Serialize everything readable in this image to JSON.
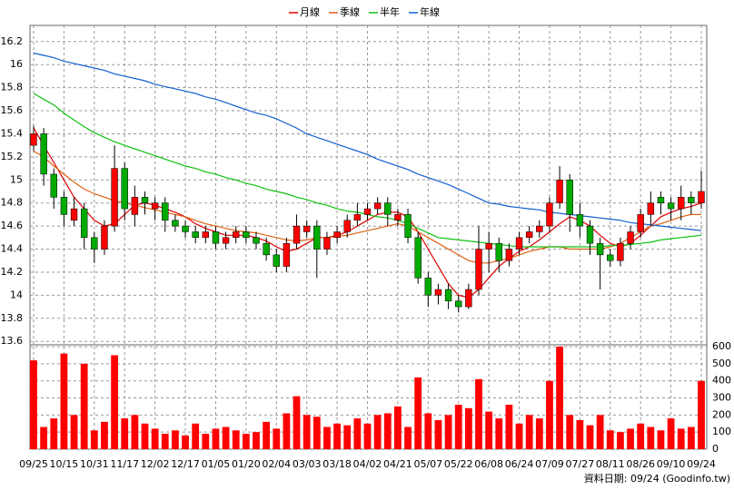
{
  "chart_data": {
    "type": "candlestick",
    "categories": [
      "09/25",
      null,
      null,
      "10/15",
      null,
      null,
      "10/31",
      null,
      null,
      "11/17",
      null,
      null,
      "12/02",
      null,
      null,
      "12/17",
      null,
      null,
      "01/05",
      null,
      null,
      "01/20",
      null,
      null,
      "02/04",
      null,
      null,
      "03/03",
      null,
      null,
      "03/18",
      null,
      null,
      "04/02",
      null,
      null,
      "04/21",
      null,
      null,
      "05/07",
      null,
      null,
      "05/22",
      null,
      null,
      "06/08",
      null,
      null,
      "06/24",
      null,
      null,
      "07/09",
      null,
      null,
      "07/27",
      null,
      null,
      "08/11",
      null,
      null,
      "08/26",
      null,
      null,
      "09/10",
      null,
      null,
      "09/24"
    ],
    "open": [
      15.3,
      15.4,
      15.05,
      14.85,
      14.65,
      14.75,
      14.5,
      14.4,
      14.6,
      15.1,
      14.7,
      14.85,
      14.75,
      14.8,
      14.65,
      14.6,
      14.55,
      14.5,
      14.55,
      14.45,
      14.5,
      14.55,
      14.5,
      14.45,
      14.35,
      14.25,
      14.45,
      14.55,
      14.6,
      14.4,
      14.5,
      14.55,
      14.65,
      14.7,
      14.75,
      14.8,
      14.65,
      14.7,
      14.5,
      14.15,
      14.0,
      14.05,
      13.95,
      13.9,
      14.05,
      14.4,
      14.45,
      14.3,
      14.4,
      14.5,
      14.55,
      14.6,
      14.8,
      15.0,
      14.7,
      14.6,
      14.45,
      14.35,
      14.3,
      14.45,
      14.55,
      14.7,
      14.85,
      14.8,
      14.75,
      14.85,
      14.8
    ],
    "high": [
      15.47,
      15.45,
      15.1,
      14.9,
      14.85,
      14.8,
      14.55,
      14.65,
      15.3,
      15.15,
      14.95,
      14.9,
      14.85,
      14.85,
      14.7,
      14.65,
      14.6,
      14.6,
      14.6,
      14.55,
      14.6,
      14.6,
      14.55,
      14.5,
      14.4,
      14.5,
      14.7,
      14.65,
      14.65,
      14.55,
      14.6,
      14.7,
      14.8,
      14.8,
      14.85,
      14.85,
      14.75,
      14.75,
      14.55,
      14.2,
      14.1,
      14.1,
      14.0,
      14.1,
      14.6,
      14.55,
      14.5,
      14.45,
      14.55,
      14.6,
      14.65,
      14.85,
      15.12,
      15.05,
      14.8,
      14.65,
      14.5,
      14.4,
      14.5,
      14.6,
      14.75,
      14.9,
      14.9,
      14.85,
      14.95,
      14.9,
      15.08
    ],
    "low": [
      15.25,
      14.95,
      14.75,
      14.6,
      14.6,
      14.4,
      14.28,
      14.35,
      14.55,
      14.65,
      14.6,
      14.7,
      14.65,
      14.55,
      14.55,
      14.5,
      14.45,
      14.45,
      14.4,
      14.4,
      14.45,
      14.45,
      14.4,
      14.3,
      14.2,
      14.2,
      14.4,
      14.5,
      14.15,
      14.35,
      14.45,
      14.5,
      14.6,
      14.65,
      14.7,
      14.6,
      14.6,
      14.45,
      14.1,
      13.9,
      13.92,
      13.88,
      13.85,
      13.88,
      14.0,
      14.2,
      14.2,
      14.25,
      14.35,
      14.45,
      14.5,
      14.55,
      14.75,
      14.55,
      14.5,
      14.35,
      14.05,
      14.25,
      14.25,
      14.4,
      14.5,
      14.6,
      14.7,
      14.65,
      14.65,
      14.7,
      14.75
    ],
    "close": [
      15.4,
      15.05,
      14.85,
      14.7,
      14.75,
      14.5,
      14.4,
      14.6,
      15.1,
      14.75,
      14.85,
      14.8,
      14.8,
      14.65,
      14.6,
      14.55,
      14.5,
      14.55,
      14.45,
      14.5,
      14.55,
      14.5,
      14.45,
      14.35,
      14.25,
      14.45,
      14.6,
      14.6,
      14.4,
      14.5,
      14.55,
      14.65,
      14.7,
      14.75,
      14.8,
      14.7,
      14.7,
      14.5,
      14.15,
      14.0,
      14.05,
      13.95,
      13.9,
      14.05,
      14.4,
      14.45,
      14.3,
      14.4,
      14.5,
      14.55,
      14.6,
      14.8,
      15.0,
      14.7,
      14.6,
      14.45,
      14.35,
      14.3,
      14.45,
      14.55,
      14.7,
      14.8,
      14.8,
      14.75,
      14.85,
      14.8,
      14.9
    ],
    "up_color": "#ff0000",
    "down_color": "#00aa00",
    "ylim": [
      13.57,
      16.34
    ],
    "yticks": [
      13.6,
      13.8,
      14,
      14.2,
      14.4,
      14.6,
      14.8,
      15,
      15.2,
      15.4,
      15.6,
      15.8,
      16,
      16.2
    ],
    "grid": true,
    "series": [
      {
        "name": "月線",
        "color": "#e00000",
        "values": [
          15.45,
          15.3,
          15.15,
          15.0,
          14.85,
          14.75,
          14.65,
          14.6,
          14.62,
          14.7,
          14.78,
          14.8,
          14.78,
          14.75,
          14.72,
          14.68,
          14.62,
          14.58,
          14.55,
          14.52,
          14.52,
          14.52,
          14.5,
          14.47,
          14.42,
          14.38,
          14.4,
          14.45,
          14.5,
          14.5,
          14.52,
          14.55,
          14.6,
          14.65,
          14.7,
          14.72,
          14.72,
          14.68,
          14.55,
          14.4,
          14.25,
          14.1,
          14.0,
          13.98,
          14.05,
          14.15,
          14.25,
          14.32,
          14.38,
          14.42,
          14.48,
          14.55,
          14.62,
          14.68,
          14.65,
          14.6,
          14.52,
          14.45,
          14.42,
          14.45,
          14.52,
          14.6,
          14.68,
          14.72,
          14.75,
          14.77,
          14.8
        ]
      },
      {
        "name": "季線",
        "color": "#e06010",
        "values": [
          15.25,
          15.2,
          15.12,
          15.05,
          14.98,
          14.92,
          14.88,
          14.85,
          14.82,
          14.8,
          14.78,
          14.76,
          14.74,
          14.72,
          14.7,
          14.68,
          14.65,
          14.62,
          14.6,
          14.58,
          14.56,
          14.55,
          14.54,
          14.52,
          14.5,
          14.48,
          14.47,
          14.48,
          14.5,
          14.5,
          14.51,
          14.52,
          14.54,
          14.56,
          14.58,
          14.6,
          14.62,
          14.6,
          14.55,
          14.5,
          14.45,
          14.4,
          14.35,
          14.3,
          14.28,
          14.28,
          14.3,
          14.32,
          14.35,
          14.38,
          14.4,
          14.42,
          14.42,
          14.4,
          14.4,
          14.4,
          14.4,
          14.42,
          14.45,
          14.5,
          14.55,
          14.6,
          14.62,
          14.65,
          14.68,
          14.7,
          14.7
        ]
      },
      {
        "name": "半年",
        "color": "#10c010",
        "values": [
          15.75,
          15.7,
          15.65,
          15.58,
          15.52,
          15.46,
          15.41,
          15.37,
          15.33,
          15.3,
          15.27,
          15.24,
          15.21,
          15.18,
          15.15,
          15.12,
          15.1,
          15.07,
          15.05,
          15.02,
          15.0,
          14.97,
          14.95,
          14.92,
          14.9,
          14.88,
          14.85,
          14.83,
          14.8,
          14.78,
          14.75,
          14.73,
          14.72,
          14.7,
          14.68,
          14.67,
          14.65,
          14.62,
          14.58,
          14.54,
          14.5,
          14.49,
          14.48,
          14.47,
          14.46,
          14.45,
          14.44,
          14.43,
          14.42,
          14.42,
          14.42,
          14.42,
          14.42,
          14.42,
          14.42,
          14.42,
          14.42,
          14.43,
          14.43,
          14.44,
          14.45,
          14.46,
          14.48,
          14.49,
          14.5,
          14.51,
          14.52
        ]
      },
      {
        "name": "年線",
        "color": "#1060d0",
        "values": [
          16.1,
          16.08,
          16.06,
          16.03,
          16.01,
          15.99,
          15.97,
          15.95,
          15.92,
          15.9,
          15.88,
          15.86,
          15.83,
          15.81,
          15.79,
          15.77,
          15.75,
          15.72,
          15.7,
          15.67,
          15.64,
          15.61,
          15.58,
          15.56,
          15.53,
          15.49,
          15.45,
          15.4,
          15.37,
          15.34,
          15.31,
          15.28,
          15.25,
          15.22,
          15.18,
          15.15,
          15.12,
          15.09,
          15.05,
          15.02,
          14.99,
          14.96,
          14.92,
          14.88,
          14.84,
          14.8,
          14.79,
          14.77,
          14.76,
          14.75,
          14.74,
          14.72,
          14.71,
          14.7,
          14.69,
          14.68,
          14.67,
          14.66,
          14.65,
          14.63,
          14.62,
          14.61,
          14.6,
          14.59,
          14.58,
          14.57,
          14.56
        ]
      }
    ],
    "volume": {
      "type": "bar",
      "color": "#ff0000",
      "values": [
        520,
        130,
        180,
        560,
        200,
        500,
        110,
        160,
        550,
        180,
        200,
        150,
        120,
        90,
        110,
        80,
        150,
        90,
        120,
        130,
        110,
        90,
        100,
        160,
        120,
        210,
        310,
        200,
        190,
        130,
        150,
        140,
        180,
        150,
        200,
        210,
        250,
        130,
        420,
        210,
        170,
        200,
        260,
        240,
        410,
        220,
        180,
        260,
        150,
        200,
        180,
        400,
        600,
        200,
        170,
        140,
        200,
        110,
        100,
        120,
        150,
        130,
        110,
        180,
        120,
        130,
        400
      ],
      "ylim": [
        0,
        611
      ],
      "yticks": [
        0,
        100,
        200,
        300,
        400,
        500,
        600
      ]
    },
    "footnote": "資料日期: 09/24 (Goodinfo.tw)"
  }
}
